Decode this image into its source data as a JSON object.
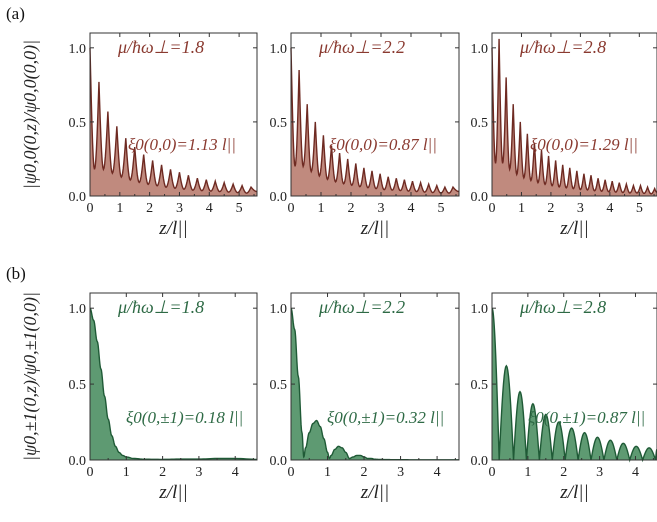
{
  "labels": {
    "a": "(a)",
    "b": "(b)"
  },
  "colors": {
    "row_a_stroke": "#6e2a22",
    "row_a_fill": "#c08a7e",
    "row_a_text": "#8a3a30",
    "row_b_stroke": "#1f5a36",
    "row_b_fill": "#5e9a72",
    "row_b_text": "#2e6a45"
  },
  "chart_data": [
    {
      "type": "area",
      "row": "a",
      "panel": 1,
      "ylabel": "|ψ0,0(0,z)/ψ0,0(0,0)|",
      "xlabel": "z/l||",
      "annotation_top": "μ/ħω⊥=1.8",
      "annotation_xi": "ξ0(0,0)=1.13 l||",
      "xlim": [
        0,
        5.6
      ],
      "ylim": [
        0,
        1.1
      ],
      "xticks": [
        "0",
        "1",
        "2",
        "3",
        "4",
        "5"
      ],
      "yticks": [
        "0.0",
        "0.5",
        "1.0"
      ],
      "osc_period": 0.3,
      "decay_length": 1.13,
      "x": [
        0.0,
        0.3,
        0.6,
        0.9,
        1.2,
        1.5,
        1.8,
        2.1,
        2.4,
        2.7,
        3.0,
        3.3,
        3.6,
        3.9,
        4.2,
        4.5,
        4.8,
        5.1,
        5.4
      ],
      "y_peaks": [
        1.0,
        0.77,
        0.57,
        0.47,
        0.39,
        0.33,
        0.28,
        0.24,
        0.21,
        0.18,
        0.16,
        0.14,
        0.12,
        0.11,
        0.1,
        0.09,
        0.08,
        0.07,
        0.06
      ],
      "min_level": 0.18
    },
    {
      "type": "area",
      "row": "a",
      "panel": 2,
      "xlabel": "z/l||",
      "annotation_top": "μ/ħω⊥=2.2",
      "annotation_xi": "ξ0(0,0)=0.87 l||",
      "xlim": [
        0,
        5.6
      ],
      "ylim": [
        0,
        1.1
      ],
      "xticks": [
        "0",
        "1",
        "2",
        "3",
        "4",
        "5"
      ],
      "yticks": [
        "0.0",
        "0.5",
        "1.0"
      ],
      "osc_period": 0.27,
      "decay_length": 0.87,
      "x": [
        0.0,
        0.27,
        0.54,
        0.81,
        1.08,
        1.35,
        1.62,
        1.89,
        2.16,
        2.43,
        2.7,
        2.97,
        3.24,
        3.51,
        3.78,
        4.05,
        4.32,
        4.59,
        4.86,
        5.13,
        5.4
      ],
      "y_peaks": [
        1.0,
        0.85,
        0.62,
        0.5,
        0.41,
        0.34,
        0.29,
        0.25,
        0.22,
        0.19,
        0.17,
        0.15,
        0.13,
        0.12,
        0.11,
        0.1,
        0.09,
        0.08,
        0.07,
        0.06,
        0.06
      ],
      "min_level": 0.2
    },
    {
      "type": "area",
      "row": "a",
      "panel": 3,
      "xlabel": "z/l||",
      "annotation_top": "μ/ħω⊥=2.8",
      "annotation_xi": "ξ0(0,0)=1.29 l||",
      "xlim": [
        0,
        5.6
      ],
      "ylim": [
        0,
        1.1
      ],
      "xticks": [
        "0",
        "1",
        "2",
        "3",
        "4",
        "5"
      ],
      "yticks": [
        "0.0",
        "0.5",
        "1.0"
      ],
      "osc_period": 0.24,
      "decay_length": 1.29,
      "x": [
        0.0,
        0.24,
        0.48,
        0.72,
        0.96,
        1.2,
        1.44,
        1.68,
        1.92,
        2.16,
        2.4,
        2.64,
        2.88,
        3.12,
        3.36,
        3.6,
        3.84,
        4.08,
        4.32,
        4.56,
        4.8,
        5.04,
        5.28,
        5.52
      ],
      "y_peaks": [
        1.0,
        1.06,
        0.8,
        0.62,
        0.5,
        0.42,
        0.36,
        0.31,
        0.27,
        0.24,
        0.21,
        0.19,
        0.17,
        0.15,
        0.14,
        0.12,
        0.11,
        0.1,
        0.09,
        0.08,
        0.07,
        0.07,
        0.06,
        0.05
      ],
      "min_level": 0.22
    },
    {
      "type": "area",
      "row": "b",
      "panel": 1,
      "ylabel": "|ψ0,±1(0,z)/ψ0,±1(0,0)|",
      "xlabel": "z/l||",
      "annotation_top": "μ/ħω⊥=1.8",
      "annotation_xi": "ξ0(0,±1)=0.18 l||",
      "xlim": [
        0,
        4.6
      ],
      "ylim": [
        0,
        1.1
      ],
      "xticks": [
        "0",
        "1",
        "2",
        "3",
        "4"
      ],
      "yticks": [
        "0.0",
        "0.5",
        "1.0"
      ],
      "x": [
        0.0,
        0.1,
        0.2,
        0.3,
        0.4,
        0.5,
        0.6,
        0.7,
        0.8,
        0.9,
        1.0,
        1.2,
        1.5,
        2.0,
        2.5,
        3.0,
        3.5,
        4.0,
        4.6
      ],
      "y": [
        1.0,
        0.92,
        0.78,
        0.6,
        0.42,
        0.27,
        0.16,
        0.09,
        0.05,
        0.03,
        0.02,
        0.01,
        0.005,
        0.004,
        0.006,
        0.006,
        0.01,
        0.01,
        0.004
      ]
    },
    {
      "type": "area",
      "row": "b",
      "panel": 2,
      "xlabel": "z/l||",
      "annotation_top": "μ/ħω⊥=2.2",
      "annotation_xi": "ξ0(0,±1)=0.32 l||",
      "xlim": [
        0,
        4.6
      ],
      "ylim": [
        0,
        1.1
      ],
      "xticks": [
        "0",
        "1",
        "2",
        "3",
        "4"
      ],
      "yticks": [
        "0.0",
        "0.5",
        "1.0"
      ],
      "x": [
        0.0,
        0.1,
        0.2,
        0.3,
        0.35,
        0.4,
        0.5,
        0.6,
        0.7,
        0.8,
        0.9,
        1.0,
        1.05,
        1.1,
        1.2,
        1.3,
        1.4,
        1.5,
        1.6,
        1.7,
        1.8,
        1.9,
        2.0,
        2.1,
        2.2,
        2.3,
        2.4,
        2.6,
        2.8,
        3.0,
        3.5,
        4.0,
        4.6
      ],
      "y": [
        1.0,
        0.86,
        0.55,
        0.18,
        0.02,
        0.08,
        0.18,
        0.24,
        0.26,
        0.22,
        0.14,
        0.05,
        0.01,
        0.03,
        0.07,
        0.09,
        0.08,
        0.05,
        0.01,
        0.02,
        0.03,
        0.03,
        0.02,
        0.01,
        0.01,
        0.005,
        0.004,
        0.003,
        0.002,
        0.002,
        0.001,
        0.001,
        0.001
      ]
    },
    {
      "type": "area",
      "row": "b",
      "panel": 3,
      "xlabel": "z/l||",
      "annotation_top": "μ/ħω⊥=2.8",
      "annotation_xi": "ξ0(0,±1)=0.87 l||",
      "xlim": [
        0,
        4.6
      ],
      "ylim": [
        0,
        1.1
      ],
      "xticks": [
        "0",
        "1",
        "2",
        "3",
        "4"
      ],
      "yticks": [
        "0.0",
        "0.5",
        "1.0"
      ],
      "x_zeros": [
        0.0,
        0.2,
        0.6,
        0.96,
        1.32,
        1.68,
        2.04,
        2.4,
        2.76,
        3.12,
        3.48,
        3.84,
        4.2,
        4.56
      ],
      "y_peaks": [
        1.0,
        0.62,
        0.45,
        0.37,
        0.3,
        0.25,
        0.21,
        0.18,
        0.15,
        0.13,
        0.11,
        0.09,
        0.08,
        0.07
      ]
    }
  ]
}
